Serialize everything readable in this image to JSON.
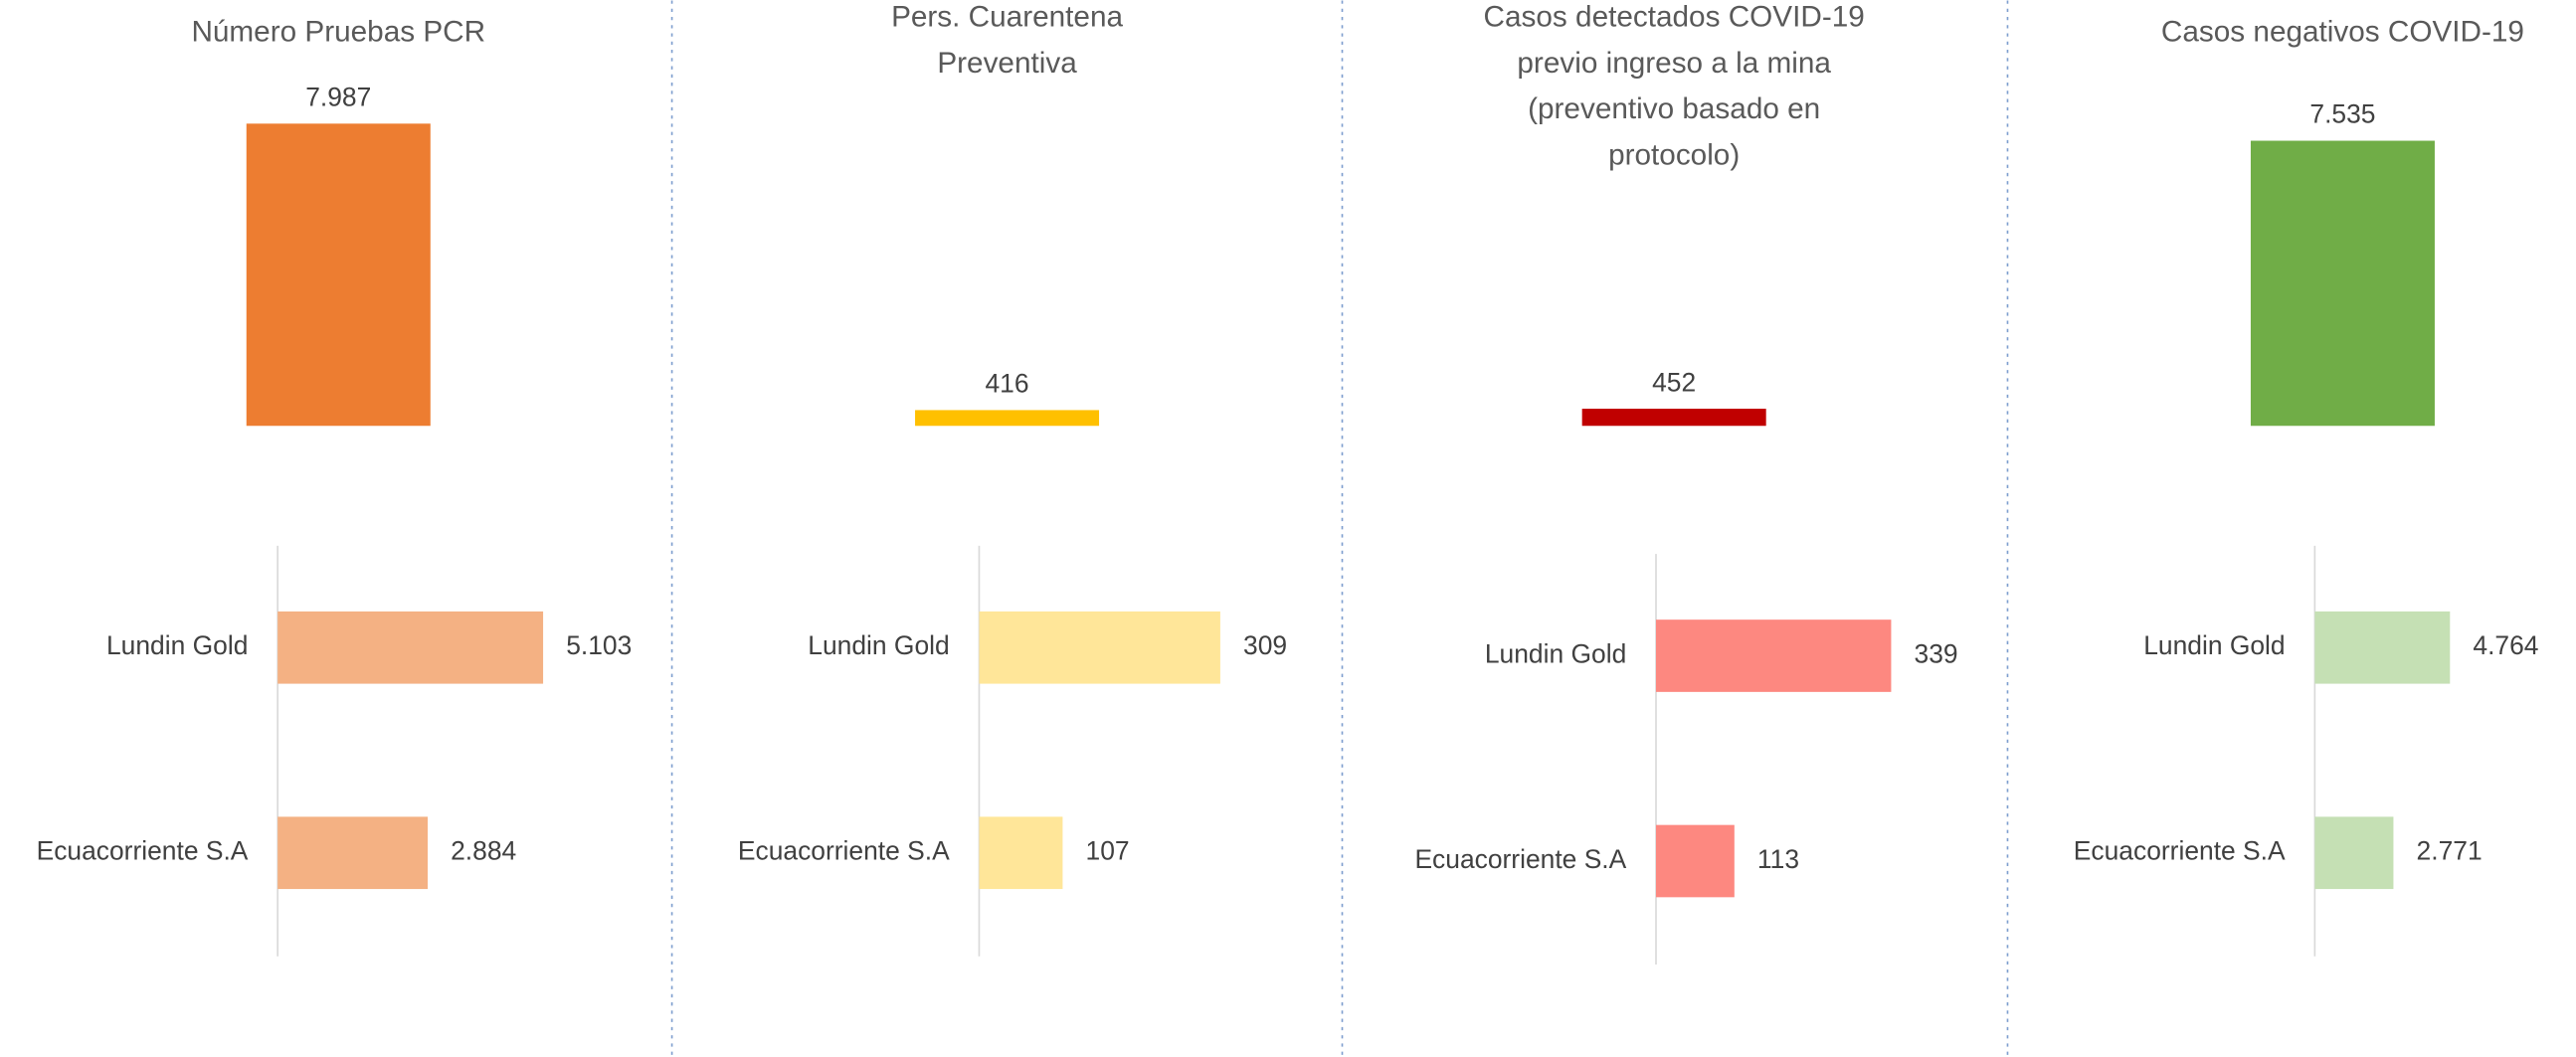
{
  "chart_data": [
    {
      "type": "bar",
      "title": "Número Pruebas PCR",
      "total": 7987,
      "total_label": "7.987",
      "total_color": "#ed7d31",
      "categories": [
        "Lundin Gold",
        "Ecuacorriente S.A"
      ],
      "values": [
        5103,
        2884
      ],
      "value_labels": [
        "5.103",
        "2.884"
      ],
      "color": "#f4b183",
      "xlim": [
        0,
        6000
      ]
    },
    {
      "type": "bar",
      "title": "Pers. Cuarentena Preventiva",
      "total": 416,
      "total_color": "#ffc000",
      "categories": [
        "Lundin Gold",
        "Ecuacorriente S.A"
      ],
      "values": [
        309,
        107
      ],
      "color": "#ffe699",
      "xlim": [
        0,
        400
      ]
    },
    {
      "type": "bar",
      "title": "Casos detectados COVID-19 previo ingreso a la mina (preventivo basado en protocolo)",
      "total": 452,
      "total_color": "#c00000",
      "categories": [
        "Lundin Gold",
        "Ecuacorriente S.A"
      ],
      "values": [
        339,
        113
      ],
      "color": "#fd8880",
      "xlim": [
        0,
        450
      ]
    },
    {
      "type": "bar",
      "title": "Casos negativos COVID-19",
      "total": 7535,
      "total_label": "7.535",
      "total_color": "#70ad47",
      "categories": [
        "Lundin Gold",
        "Ecuacorriente S.A"
      ],
      "values": [
        4764,
        2771
      ],
      "value_labels": [
        "4.764",
        "2.771"
      ],
      "color": "#c5e0b4",
      "xlim": [
        0,
        11000
      ]
    }
  ]
}
